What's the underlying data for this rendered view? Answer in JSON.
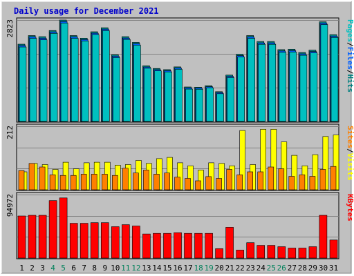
{
  "chart_data": {
    "type": "bar",
    "title": "Daily usage for December 2021",
    "categories": [
      "1",
      "2",
      "3",
      "4",
      "5",
      "6",
      "7",
      "8",
      "9",
      "10",
      "11",
      "12",
      "13",
      "14",
      "15",
      "16",
      "17",
      "18",
      "19",
      "20",
      "21",
      "22",
      "23",
      "24",
      "25",
      "26",
      "27",
      "28",
      "29",
      "30",
      "31"
    ],
    "weekend_days": [
      "4",
      "5",
      "11",
      "12",
      "18",
      "19",
      "25",
      "26"
    ],
    "panels": [
      {
        "id": "hits-files-pages",
        "ymax_label": "2823",
        "ymax": 2823,
        "legend": [
          {
            "label": "Pages",
            "color": "#00c0c0"
          },
          {
            "label": "/",
            "color": "#000000"
          },
          {
            "label": "Files",
            "color": "#0060ff"
          },
          {
            "label": "/",
            "color": "#000000"
          },
          {
            "label": "Hits",
            "color": "#008080"
          }
        ],
        "series": [
          {
            "name": "Hits",
            "color": "#008080",
            "values": [
              2150,
              2390,
              2360,
              2531,
              2823,
              2390,
              2318,
              2496,
              2608,
              1855,
              2360,
              2200,
              1550,
              1474,
              1443,
              1519,
              960,
              955,
              995,
              830,
              1290,
              1870,
              2390,
              2225,
              2225,
              2000,
              2010,
              1920,
              1985,
              2775,
              2415
            ]
          },
          {
            "name": "Files",
            "color": "#0060ff",
            "values": [
              2130,
              2370,
              2335,
              2510,
              2800,
              2370,
              2298,
              2475,
              2588,
              1835,
              2340,
              2180,
              1535,
              1460,
              1430,
              1505,
              950,
              945,
              985,
              820,
              1275,
              1850,
              2370,
              2205,
              2205,
              1980,
              1990,
              1900,
              1965,
              2755,
              2395
            ]
          },
          {
            "name": "Pages",
            "color": "#00c0c0",
            "values": [
              2110,
              2350,
              2310,
              2490,
              2775,
              2350,
              2278,
              2455,
              2566,
              1815,
              2320,
              2160,
              1520,
              1446,
              1417,
              1490,
              940,
              935,
              975,
              810,
              1260,
              1830,
              2350,
              2185,
              2185,
              1960,
              1970,
              1880,
              1945,
              2735,
              2375
            ]
          }
        ]
      },
      {
        "id": "visits-sites",
        "ymax_label": "212",
        "ymax": 212,
        "legend": [
          {
            "label": "Sites",
            "color": "#ff8000"
          },
          {
            "label": "/",
            "color": "#000000"
          },
          {
            "label": "Visits",
            "color": "#ffff00"
          }
        ],
        "series": [
          {
            "name": "Visits",
            "color": "#ffff00",
            "values": [
              60,
              88,
              84,
              68,
              92,
              70,
              90,
              92,
              92,
              82,
              84,
              98,
              88,
              104,
              108,
              90,
              80,
              66,
              90,
              88,
              80,
              198,
              84,
              202,
              202,
              160,
              115,
              80,
              117,
              178,
              183
            ]
          },
          {
            "name": "Sites",
            "color": "#ff8000",
            "values": [
              64,
              88,
              76,
              50,
              48,
              48,
              52,
              52,
              52,
              48,
              72,
              56,
              66,
              52,
              56,
              42,
              38,
              30,
              44,
              38,
              68,
              50,
              60,
              60,
              76,
              70,
              45,
              50,
              45,
              68,
              78
            ]
          }
        ]
      },
      {
        "id": "kbytes",
        "ymax_label": "94972",
        "ymax": 94972,
        "legend": [
          {
            "label": "KBytes",
            "color": "#ff0000"
          }
        ],
        "series": [
          {
            "name": "KBytes",
            "color": "#ff0000",
            "values": [
              63000,
              64000,
              64000,
              86000,
              90000,
              52000,
              52000,
              53000,
              53000,
              47000,
              50000,
              48000,
              36000,
              37000,
              37000,
              38000,
              37000,
              37000,
              37000,
              14000,
              46000,
              12000,
              23000,
              19000,
              19000,
              17000,
              15000,
              15000,
              17000,
              64000,
              27000
            ]
          }
        ]
      }
    ]
  }
}
